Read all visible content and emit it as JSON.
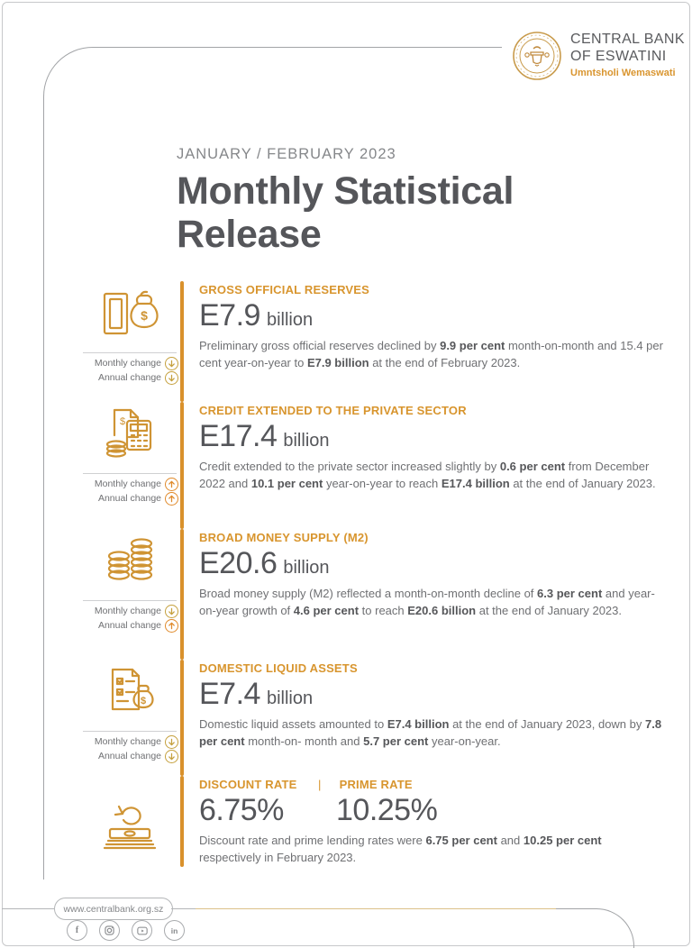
{
  "logo": {
    "org_line1": "CENTRAL BANK",
    "org_line2": "OF ESWATINI",
    "tagline": "Umntsholi Wemaswati"
  },
  "masthead": {
    "period": "JANUARY / FEBRUARY 2023",
    "title_line1": "Monthly Statistical",
    "title_line2": "Release"
  },
  "change_labels": {
    "monthly": "Monthly change",
    "annual": "Annual change"
  },
  "colors": {
    "accent": "#d9912c",
    "up": "#e08a2b",
    "down": "#c5a03d",
    "heading": "#55565a",
    "body_text": "#6f7073"
  },
  "sections": [
    {
      "id": "gross-official-reserves",
      "icon": "gold-bar-money-bag-icon",
      "label": "GROSS OFFICIAL RESERVES",
      "value": "E7.9",
      "unit": "billion",
      "monthly_change": "down",
      "annual_change": "down",
      "body": [
        {
          "t": "Preliminary gross official reserves declined by "
        },
        {
          "t": "9.9 per cent",
          "b": true
        },
        {
          "t": " month-on-month and 15.4 per cent year-on-year to "
        },
        {
          "t": "E7.9 billion",
          "b": true
        },
        {
          "t": " at the end of February 2023."
        }
      ]
    },
    {
      "id": "credit-private-sector",
      "icon": "calculator-coins-icon",
      "label": "CREDIT EXTENDED TO THE PRIVATE SECTOR",
      "value": "E17.4",
      "unit": "billion",
      "monthly_change": "up",
      "annual_change": "up",
      "body": [
        {
          "t": "Credit extended to the private sector increased slightly by "
        },
        {
          "t": "0.6 per cent",
          "b": true
        },
        {
          "t": " from December 2022 and "
        },
        {
          "t": "10.1 per cent",
          "b": true
        },
        {
          "t": " year-on-year to reach "
        },
        {
          "t": "E17.4 billion",
          "b": true
        },
        {
          "t": " at the end of January 2023."
        }
      ]
    },
    {
      "id": "broad-money-supply",
      "icon": "coin-stacks-icon",
      "label": "BROAD MONEY SUPPLY (M2)",
      "value": "E20.6",
      "unit": "billion",
      "monthly_change": "down",
      "annual_change": "up",
      "body": [
        {
          "t": "Broad money supply (M2) reflected a month-on-month decline of "
        },
        {
          "t": "6.3 per cent",
          "b": true
        },
        {
          "t": " and year-on-year growth of "
        },
        {
          "t": "4.6 per cent",
          "b": true
        },
        {
          "t": " to reach "
        },
        {
          "t": "E20.6 billion",
          "b": true
        },
        {
          "t": " at the end of January 2023."
        }
      ]
    },
    {
      "id": "domestic-liquid-assets",
      "icon": "document-money-bag-icon",
      "label": "DOMESTIC LIQUID ASSETS",
      "value": "E7.4",
      "unit": "billion",
      "monthly_change": "down",
      "annual_change": "down",
      "body": [
        {
          "t": "Domestic liquid assets amounted to "
        },
        {
          "t": "E7.4 billion",
          "b": true
        },
        {
          "t": " at the end of January 2023, down by "
        },
        {
          "t": "7.8 per cent",
          "b": true
        },
        {
          "t": " month-on- month and "
        },
        {
          "t": "5.7 per cent",
          "b": true
        },
        {
          "t": " year-on-year."
        }
      ]
    },
    {
      "id": "rates",
      "icon": "banknotes-refresh-icon",
      "separator": "|",
      "rates": [
        {
          "label": "DISCOUNT RATE",
          "value": "6.75%"
        },
        {
          "label": "PRIME RATE",
          "value": "10.25%"
        }
      ],
      "body": [
        {
          "t": "Discount rate and prime lending rates were "
        },
        {
          "t": "6.75 per cent",
          "b": true
        },
        {
          "t": " and "
        },
        {
          "t": "10.25 per cent",
          "b": true
        },
        {
          "t": " respectively in February 2023."
        }
      ]
    }
  ],
  "footer": {
    "website": "www.centralbank.org.sz",
    "social": [
      {
        "name": "facebook"
      },
      {
        "name": "instagram"
      },
      {
        "name": "youtube"
      },
      {
        "name": "linkedin"
      }
    ]
  }
}
